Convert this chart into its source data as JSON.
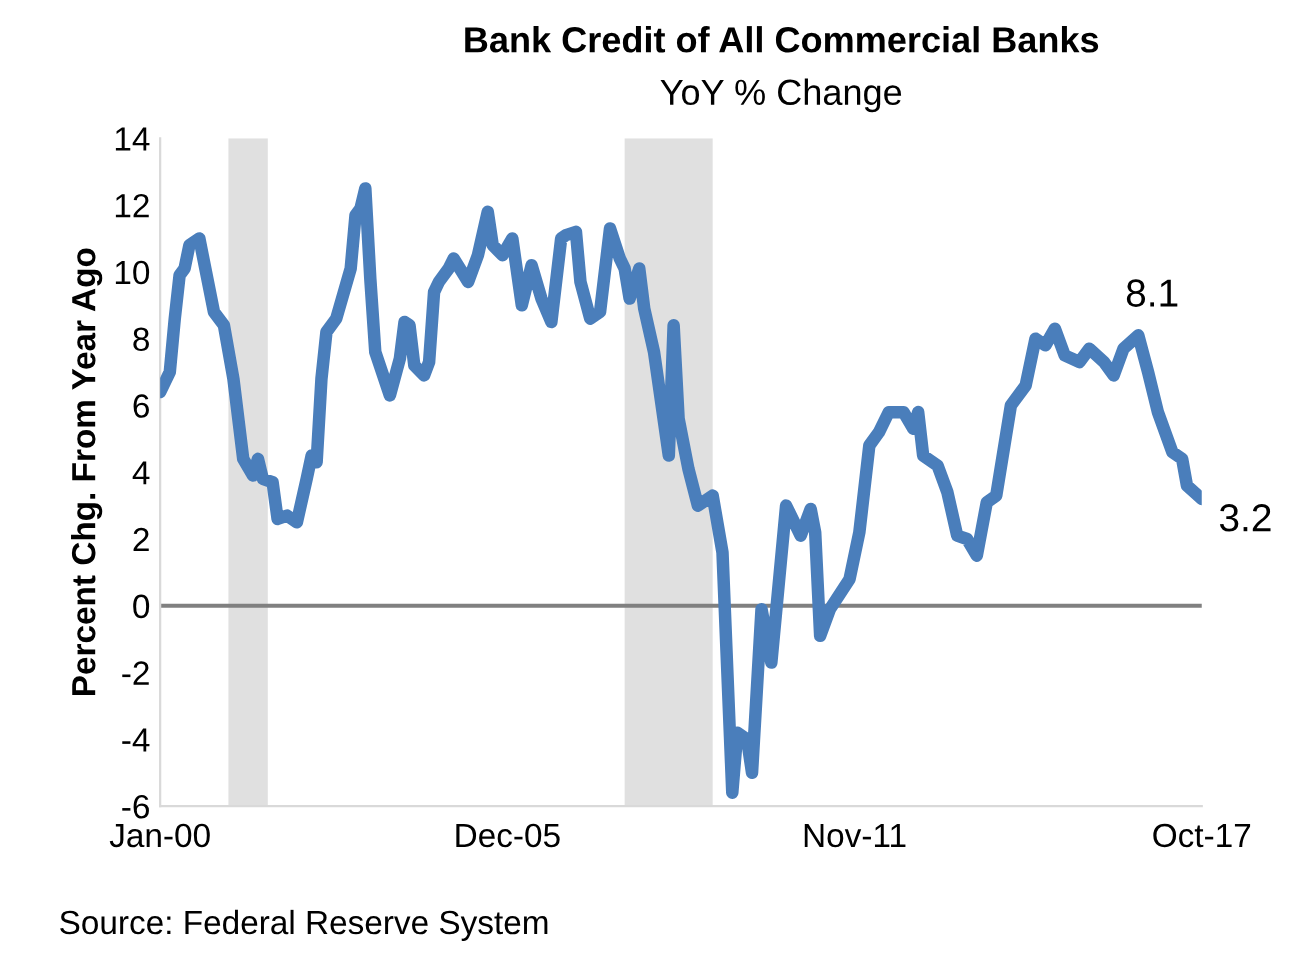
{
  "chart_data": {
    "type": "line",
    "title": "Bank Credit of All Commercial Banks",
    "subtitle": "YoY % Change",
    "ylabel": "Percent Chg. From Year Ago",
    "x": [
      "2000-01",
      "2000-03",
      "2000-04",
      "2000-05",
      "2000-06",
      "2000-07",
      "2000-09",
      "2000-12",
      "2001-02",
      "2001-04",
      "2001-06",
      "2001-08",
      "2001-09",
      "2001-10",
      "2001-12",
      "2002-01",
      "2002-03",
      "2002-05",
      "2002-07",
      "2002-08",
      "2002-09",
      "2002-10",
      "2002-11",
      "2003-01",
      "2003-04",
      "2003-05",
      "2003-06",
      "2003-07",
      "2003-08",
      "2003-09",
      "2003-12",
      "2004-02",
      "2004-03",
      "2004-04",
      "2004-05",
      "2004-07",
      "2004-08",
      "2004-09",
      "2004-10",
      "2004-12",
      "2005-01",
      "2005-04",
      "2005-06",
      "2005-08",
      "2005-09",
      "2005-11",
      "2006-01",
      "2006-03",
      "2006-05",
      "2006-07",
      "2006-09",
      "2006-11",
      "2006-12",
      "2007-02",
      "2007-03",
      "2007-05",
      "2007-07",
      "2007-09",
      "2007-11",
      "2007-12",
      "2008-01",
      "2008-03",
      "2008-04",
      "2008-06",
      "2008-09",
      "2008-10",
      "2008-11",
      "2009-01",
      "2009-03",
      "2009-06",
      "2009-08",
      "2009-10",
      "2009-11",
      "2010-01",
      "2010-02",
      "2010-04",
      "2010-06",
      "2010-09",
      "2010-12",
      "2011-02",
      "2011-03",
      "2011-04",
      "2011-06",
      "2011-10",
      "2011-12",
      "2012-02",
      "2012-04",
      "2012-06",
      "2012-09",
      "2012-11",
      "2012-12",
      "2013-01",
      "2013-04",
      "2013-06",
      "2013-08",
      "2013-10",
      "2013-12",
      "2014-02",
      "2014-04",
      "2014-07",
      "2014-10",
      "2014-12",
      "2015-02",
      "2015-04",
      "2015-06",
      "2015-09",
      "2015-11",
      "2016-02",
      "2016-04",
      "2016-06",
      "2016-09",
      "2016-11",
      "2017-01",
      "2017-04",
      "2017-06",
      "2017-07",
      "2017-10"
    ],
    "series": [
      {
        "color": "#4a7ebb",
        "values": [
          6.4,
          7.0,
          8.6,
          9.9,
          10.1,
          10.8,
          11.0,
          8.8,
          8.4,
          6.8,
          4.4,
          3.9,
          4.4,
          3.8,
          3.7,
          2.6,
          2.7,
          2.5,
          3.8,
          4.5,
          4.3,
          6.8,
          8.2,
          8.6,
          10.1,
          11.7,
          11.9,
          12.5,
          9.8,
          7.6,
          6.3,
          7.4,
          8.5,
          8.4,
          7.2,
          6.9,
          7.3,
          9.4,
          9.7,
          10.1,
          10.4,
          9.7,
          10.5,
          11.8,
          10.8,
          10.5,
          11.0,
          9.0,
          10.2,
          9.2,
          8.5,
          11.0,
          11.1,
          11.2,
          9.7,
          8.6,
          8.8,
          11.3,
          10.4,
          10.1,
          9.2,
          10.1,
          8.9,
          7.6,
          4.5,
          8.4,
          5.6,
          4.1,
          3.0,
          3.3,
          1.6,
          -5.6,
          -3.8,
          -4.0,
          -5.0,
          -0.1,
          -1.7,
          3.0,
          2.1,
          2.9,
          2.2,
          -0.9,
          -0.1,
          0.8,
          2.2,
          4.8,
          5.2,
          5.8,
          5.8,
          5.3,
          5.8,
          4.5,
          4.2,
          3.4,
          2.1,
          2.0,
          1.5,
          3.1,
          3.3,
          6.0,
          6.6,
          8.0,
          7.8,
          8.3,
          7.5,
          7.3,
          7.7,
          7.3,
          6.9,
          7.7,
          8.1,
          7.0,
          5.8,
          4.6,
          4.4,
          3.6,
          3.2
        ]
      }
    ],
    "xlim": [
      "2000-01",
      "2017-10"
    ],
    "xticks": [
      {
        "value": "2000-01",
        "label": "Jan-00"
      },
      {
        "value": "2005-12",
        "label": "Dec-05"
      },
      {
        "value": "2011-11",
        "label": "Nov-11"
      },
      {
        "value": "2017-10",
        "label": "Oct-17"
      }
    ],
    "ylim": [
      -6,
      14
    ],
    "yticks": [
      -6,
      -4,
      -2,
      0,
      2,
      4,
      6,
      8,
      10,
      12,
      14
    ],
    "bands": [
      {
        "axis": "x",
        "from": "2001-03",
        "to": "2001-11",
        "color": "#e0e0e0"
      },
      {
        "axis": "x",
        "from": "2007-12",
        "to": "2009-06",
        "color": "#e0e0e0"
      }
    ],
    "ref_lines": [
      {
        "axis": "y",
        "value": 0,
        "color": "#808080"
      }
    ],
    "annotations": [
      {
        "text": "8.1",
        "x": "2016-09",
        "y": 8.1
      },
      {
        "text": "3.2",
        "x": "2017-10",
        "y": 3.2
      },
      "Source: Federal Reserve System"
    ],
    "grid": false,
    "legend": false,
    "marker": "none",
    "line_style": "solid"
  }
}
